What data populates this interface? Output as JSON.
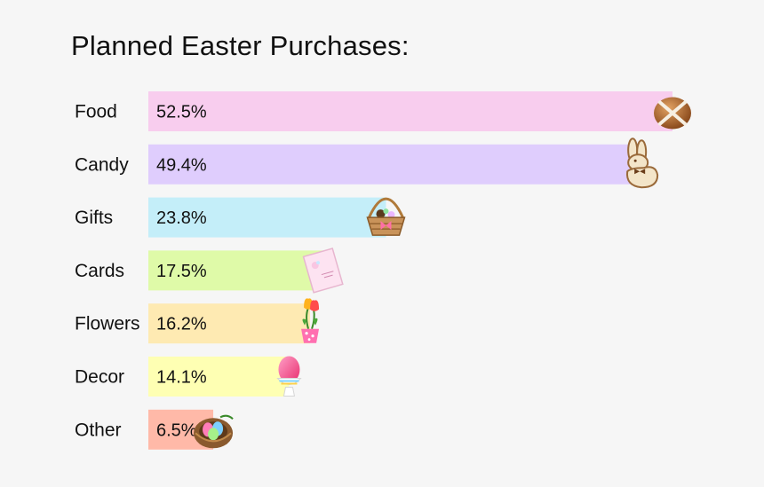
{
  "chart_data": {
    "type": "bar",
    "orientation": "horizontal",
    "title": "Planned Easter Purchases:",
    "categories": [
      "Food",
      "Candy",
      "Gifts",
      "Cards",
      "Flowers",
      "Decor",
      "Other"
    ],
    "values": [
      52.5,
      49.4,
      23.8,
      17.5,
      16.2,
      14.1,
      6.5
    ],
    "value_labels": [
      "52.5%",
      "49.4%",
      "23.8%",
      "17.5%",
      "16.2%",
      "14.1%",
      "6.5%"
    ],
    "unit": "%",
    "xlim": [
      0,
      52.5
    ],
    "grid": false,
    "colors": [
      "#f8cdee",
      "#dfcdfd",
      "#c4eef9",
      "#dffaa8",
      "#feeab2",
      "#feffb3",
      "#ffb9a8"
    ],
    "icons": [
      "hot-cross-bun-icon",
      "chocolate-bunny-icon",
      "easter-basket-icon",
      "greeting-card-icon",
      "tulip-pot-icon",
      "egg-cup-icon",
      "egg-nest-icon"
    ]
  }
}
